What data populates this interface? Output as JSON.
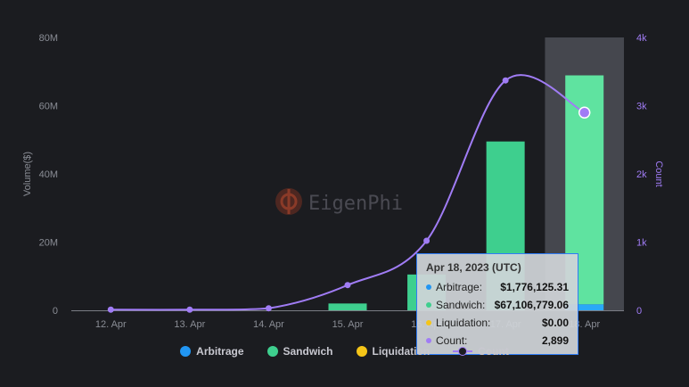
{
  "chart_data": {
    "type": "bar",
    "categories": [
      "12. Apr",
      "13. Apr",
      "14. Apr",
      "15. Apr",
      "16. Apr",
      "17. Apr",
      "18. Apr"
    ],
    "series": [
      {
        "name": "Arbitrage",
        "type": "bar",
        "axis": "left",
        "color": "#2196f3",
        "values": [
          0,
          0,
          0,
          0,
          0,
          0,
          1776125.31
        ]
      },
      {
        "name": "Sandwich",
        "type": "bar",
        "axis": "left",
        "color": "#3ecf8e",
        "values": [
          0,
          0,
          0,
          2000000,
          10500000,
          49500000,
          67106779.06
        ]
      },
      {
        "name": "Liquidation",
        "type": "bar",
        "axis": "left",
        "color": "#f5c518",
        "values": [
          0,
          0,
          0,
          0,
          0,
          0,
          0
        ]
      },
      {
        "name": "Count",
        "type": "line",
        "axis": "right",
        "color": "#a07cf5",
        "values": [
          10,
          10,
          30,
          370,
          1020,
          3370,
          2899
        ]
      }
    ],
    "ylabel": "Volume($)",
    "ylabel_right": "Count",
    "ylim": [
      0,
      80000000
    ],
    "ylim_right": [
      0,
      4000
    ],
    "yticks": [
      "0",
      "20M",
      "40M",
      "60M",
      "80M"
    ],
    "yticks_right": [
      "0",
      "1k",
      "2k",
      "3k",
      "4k"
    ],
    "highlight_index": 6,
    "watermark": "EigenPhi",
    "legend_position": "bottom"
  },
  "tooltip": {
    "title": "Apr 18, 2023 (UTC)",
    "rows": [
      {
        "label": "Arbitrage:",
        "value": "$1,776,125.31",
        "color": "#2196f3"
      },
      {
        "label": "Sandwich:",
        "value": "$67,106,779.06",
        "color": "#3ecf8e"
      },
      {
        "label": "Liquidation:",
        "value": "$0.00",
        "color": "#f5c518"
      },
      {
        "label": "Count:",
        "value": "2,899",
        "color": "#a07cf5"
      }
    ]
  }
}
